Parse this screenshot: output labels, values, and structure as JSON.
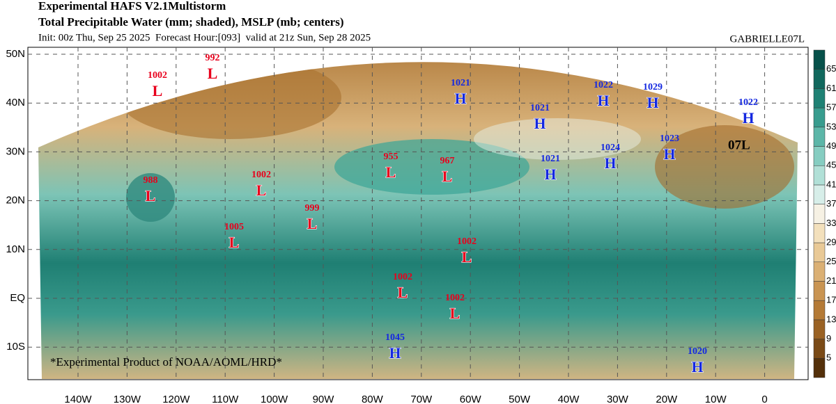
{
  "header": {
    "title": "Experimental HAFS V2.1Multistorm",
    "subtitle": "Total Precipitable Water (mm; shaded), MSLP (mb; centers)",
    "init": "Init: 00z Thu, Sep 25 2025  Forecast Hour:[093]  valid at 21z Sun, Sep 28 2025",
    "storm": "GABRIELLE07L"
  },
  "map": {
    "lon_labels": [
      "140W",
      "130W",
      "120W",
      "110W",
      "100W",
      "90W",
      "80W",
      "70W",
      "60W",
      "50W",
      "40W",
      "30W",
      "20W",
      "10W",
      "0"
    ],
    "lat_labels": [
      "50N",
      "40N",
      "30N",
      "20N",
      "10N",
      "EQ",
      "10S"
    ],
    "centers": [
      {
        "symbol": "L",
        "pressure": 992
      },
      {
        "symbol": "L",
        "pressure": 1002
      },
      {
        "symbol": "L",
        "pressure": 988
      },
      {
        "symbol": "L",
        "pressure": 1002
      },
      {
        "symbol": "L",
        "pressure": 999
      },
      {
        "symbol": "L",
        "pressure": 1005
      },
      {
        "symbol": "L",
        "pressure": 955
      },
      {
        "symbol": "L",
        "pressure": 967
      },
      {
        "symbol": "L",
        "pressure": 1002
      },
      {
        "symbol": "L",
        "pressure": 1002
      },
      {
        "symbol": "L",
        "pressure": 1002
      },
      {
        "symbol": "H",
        "pressure": 1045
      },
      {
        "symbol": "H",
        "pressure": 1021
      },
      {
        "symbol": "H",
        "pressure": 1021
      },
      {
        "symbol": "H",
        "pressure": 1021
      },
      {
        "symbol": "H",
        "pressure": 1022
      },
      {
        "symbol": "H",
        "pressure": 1024
      },
      {
        "symbol": "H",
        "pressure": 1029
      },
      {
        "symbol": "H",
        "pressure": 1023
      },
      {
        "symbol": "H",
        "pressure": 1022
      },
      {
        "symbol": "H",
        "pressure": 1020
      }
    ],
    "storm_marker": "07L",
    "footer": "*Experimental Product of NOAA/AOML/HRD*"
  },
  "colorbar": {
    "ticks": [
      5,
      9,
      13,
      17,
      21,
      25,
      29,
      33,
      37,
      41,
      45,
      49,
      53,
      57,
      61,
      65
    ]
  }
}
